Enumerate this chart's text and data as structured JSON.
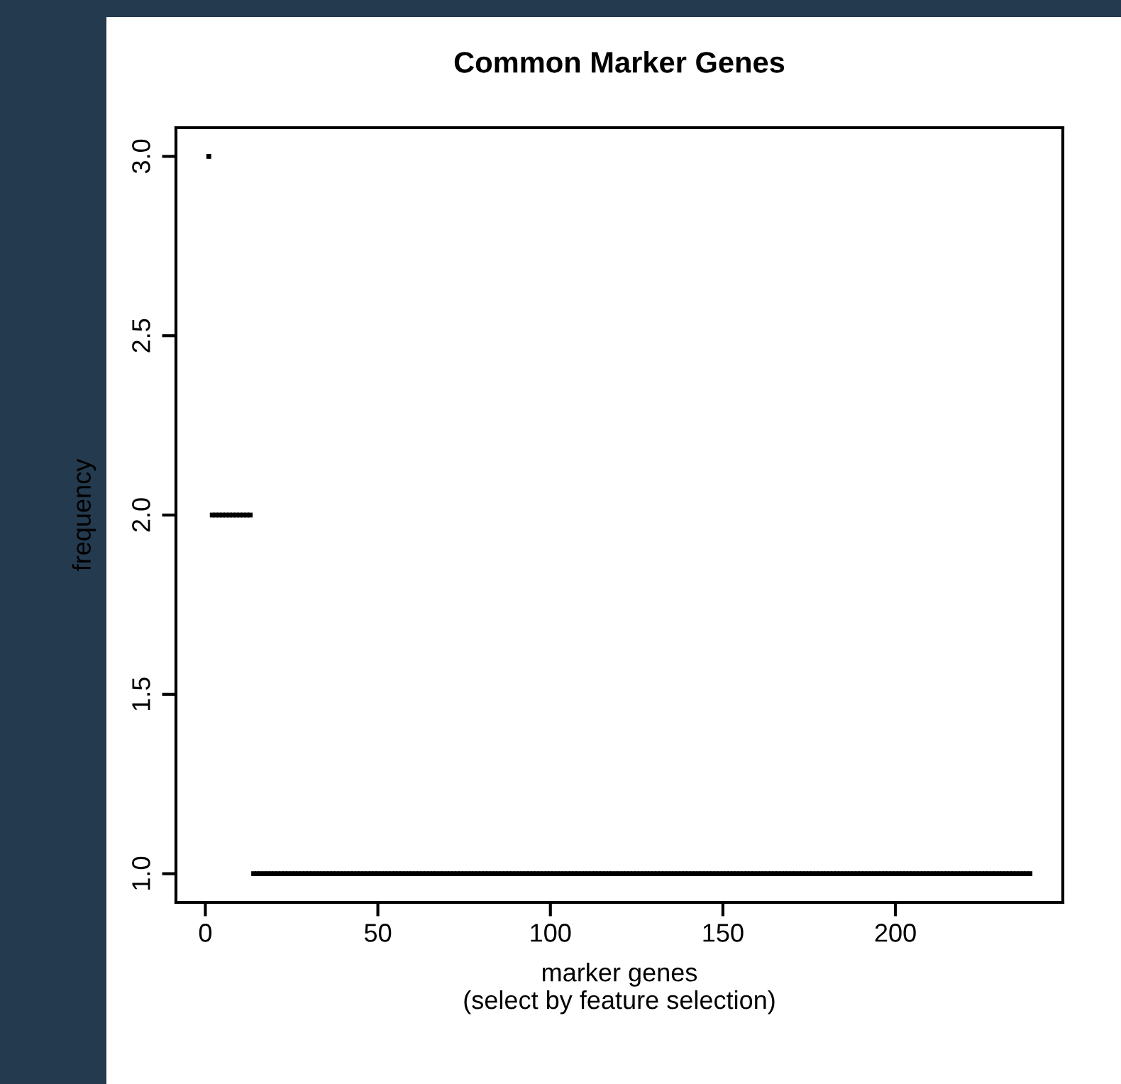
{
  "chart_data": {
    "type": "scatter",
    "title": "Common Marker Genes",
    "xlabel": "marker genes\n(select by feature selection)",
    "ylabel": "frequency",
    "marker": "square",
    "grid": false,
    "xlim": [
      -8.52,
      248.52
    ],
    "ylim": [
      0.92,
      3.08
    ],
    "xticks": [
      0,
      50,
      100,
      150,
      200
    ],
    "yticks": [
      {
        "value": 1,
        "label": "1.0"
      },
      {
        "value": 1.5,
        "label": "1.5"
      },
      {
        "value": 2,
        "label": "2.0"
      },
      {
        "value": 2.5,
        "label": "2.5"
      },
      {
        "value": 3,
        "label": "3.0"
      }
    ],
    "series": [
      {
        "color": "#000000",
        "x": [
          1,
          2,
          3,
          4,
          5,
          6,
          7,
          8,
          9,
          10,
          11,
          12,
          13,
          14,
          15,
          16,
          17,
          18,
          19,
          20,
          21,
          22,
          23,
          24,
          25,
          26,
          27,
          28,
          29,
          30,
          31,
          32,
          33,
          34,
          35,
          36,
          37,
          38,
          39,
          40,
          41,
          42,
          43,
          44,
          45,
          46,
          47,
          48,
          49,
          50,
          51,
          52,
          53,
          54,
          55,
          56,
          57,
          58,
          59,
          60,
          61,
          62,
          63,
          64,
          65,
          66,
          67,
          68,
          69,
          70,
          71,
          72,
          73,
          74,
          75,
          76,
          77,
          78,
          79,
          80,
          81,
          82,
          83,
          84,
          85,
          86,
          87,
          88,
          89,
          90,
          91,
          92,
          93,
          94,
          95,
          96,
          97,
          98,
          99,
          100,
          101,
          102,
          103,
          104,
          105,
          106,
          107,
          108,
          109,
          110,
          111,
          112,
          113,
          114,
          115,
          116,
          117,
          118,
          119,
          120,
          121,
          122,
          123,
          124,
          125,
          126,
          127,
          128,
          129,
          130,
          131,
          132,
          133,
          134,
          135,
          136,
          137,
          138,
          139,
          140,
          141,
          142,
          143,
          144,
          145,
          146,
          147,
          148,
          149,
          150,
          151,
          152,
          153,
          154,
          155,
          156,
          157,
          158,
          159,
          160,
          161,
          162,
          163,
          164,
          165,
          166,
          167,
          168,
          169,
          170,
          171,
          172,
          173,
          174,
          175,
          176,
          177,
          178,
          179,
          180,
          181,
          182,
          183,
          184,
          185,
          186,
          187,
          188,
          189,
          190,
          191,
          192,
          193,
          194,
          195,
          196,
          197,
          198,
          199,
          200,
          201,
          202,
          203,
          204,
          205,
          206,
          207,
          208,
          209,
          210,
          211,
          212,
          213,
          214,
          215,
          216,
          217,
          218,
          219,
          220,
          221,
          222,
          223,
          224,
          225,
          226,
          227,
          228,
          229,
          230,
          231,
          232,
          233,
          234,
          235,
          236,
          237,
          238,
          239
        ],
        "values": [
          3,
          2,
          2,
          2,
          2,
          2,
          2,
          2,
          2,
          2,
          2,
          2,
          2,
          1,
          1,
          1,
          1,
          1,
          1,
          1,
          1,
          1,
          1,
          1,
          1,
          1,
          1,
          1,
          1,
          1,
          1,
          1,
          1,
          1,
          1,
          1,
          1,
          1,
          1,
          1,
          1,
          1,
          1,
          1,
          1,
          1,
          1,
          1,
          1,
          1,
          1,
          1,
          1,
          1,
          1,
          1,
          1,
          1,
          1,
          1,
          1,
          1,
          1,
          1,
          1,
          1,
          1,
          1,
          1,
          1,
          1,
          1,
          1,
          1,
          1,
          1,
          1,
          1,
          1,
          1,
          1,
          1,
          1,
          1,
          1,
          1,
          1,
          1,
          1,
          1,
          1,
          1,
          1,
          1,
          1,
          1,
          1,
          1,
          1,
          1,
          1,
          1,
          1,
          1,
          1,
          1,
          1,
          1,
          1,
          1,
          1,
          1,
          1,
          1,
          1,
          1,
          1,
          1,
          1,
          1,
          1,
          1,
          1,
          1,
          1,
          1,
          1,
          1,
          1,
          1,
          1,
          1,
          1,
          1,
          1,
          1,
          1,
          1,
          1,
          1,
          1,
          1,
          1,
          1,
          1,
          1,
          1,
          1,
          1,
          1,
          1,
          1,
          1,
          1,
          1,
          1,
          1,
          1,
          1,
          1,
          1,
          1,
          1,
          1,
          1,
          1,
          1,
          1,
          1,
          1,
          1,
          1,
          1,
          1,
          1,
          1,
          1,
          1,
          1,
          1,
          1,
          1,
          1,
          1,
          1,
          1,
          1,
          1,
          1,
          1,
          1,
          1,
          1,
          1,
          1,
          1,
          1,
          1,
          1,
          1,
          1,
          1,
          1,
          1,
          1,
          1,
          1,
          1,
          1,
          1,
          1,
          1,
          1,
          1,
          1,
          1,
          1,
          1,
          1,
          1,
          1,
          1,
          1,
          1,
          1,
          1,
          1,
          1,
          1,
          1,
          1,
          1,
          1,
          1,
          1,
          1,
          1,
          1,
          1
        ]
      }
    ]
  }
}
